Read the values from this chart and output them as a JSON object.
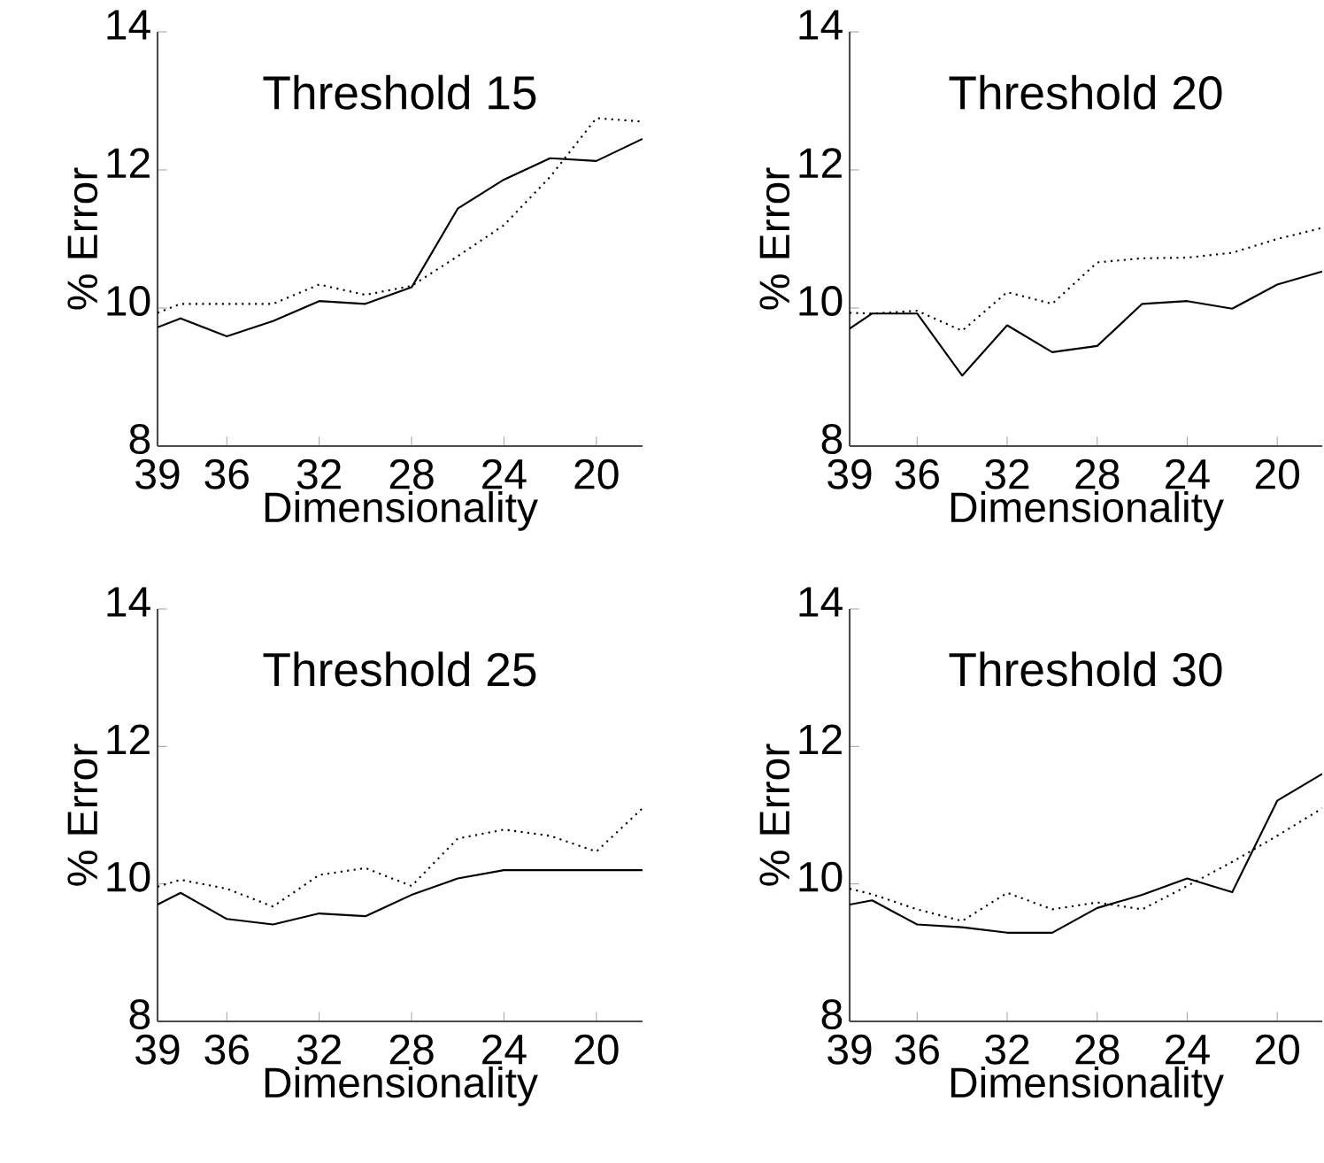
{
  "chart_data": [
    {
      "type": "line",
      "title": "Threshold 15",
      "xlabel": "Dimensionality",
      "ylabel": "% Error",
      "x": [
        39,
        38,
        36,
        34,
        32,
        30,
        28,
        26,
        24,
        22,
        20,
        18
      ],
      "xlim": [
        39,
        18
      ],
      "ylim": [
        8,
        14
      ],
      "xticks": [
        39,
        36,
        32,
        28,
        24,
        20
      ],
      "yticks": [
        8,
        10,
        12,
        14
      ],
      "series": [
        {
          "color": "#000000",
          "line_style": "solid",
          "values": [
            9.72,
            9.85,
            9.59,
            9.81,
            10.1,
            10.06,
            10.3,
            11.44,
            11.86,
            12.17,
            12.13,
            12.45
          ]
        },
        {
          "color": "#000000",
          "line_style": "dotted",
          "values": [
            9.93,
            10.06,
            10.06,
            10.06,
            10.34,
            10.19,
            10.32,
            10.75,
            11.2,
            11.9,
            12.75,
            12.7
          ]
        }
      ]
    },
    {
      "type": "line",
      "title": "Threshold 20",
      "xlabel": "Dimensionality",
      "ylabel": "% Error",
      "x": [
        39,
        38,
        36,
        34,
        32,
        30,
        28,
        26,
        24,
        22,
        20,
        18
      ],
      "xlim": [
        39,
        18
      ],
      "ylim": [
        8,
        14
      ],
      "xticks": [
        39,
        36,
        32,
        28,
        24,
        20
      ],
      "yticks": [
        8,
        10,
        12,
        14
      ],
      "series": [
        {
          "color": "#000000",
          "line_style": "solid",
          "values": [
            9.7,
            9.92,
            9.92,
            9.02,
            9.75,
            9.36,
            9.45,
            10.06,
            10.1,
            9.99,
            10.34,
            10.53
          ]
        },
        {
          "color": "#000000",
          "line_style": "dotted",
          "values": [
            9.93,
            9.92,
            9.96,
            9.67,
            10.23,
            10.06,
            10.66,
            10.72,
            10.73,
            10.8,
            11.0,
            11.16
          ]
        }
      ]
    },
    {
      "type": "line",
      "title": "Threshold 25",
      "xlabel": "Dimensionality",
      "ylabel": "% Error",
      "x": [
        39,
        38,
        36,
        34,
        32,
        30,
        28,
        26,
        24,
        22,
        20,
        18
      ],
      "xlim": [
        39,
        18
      ],
      "ylim": [
        8,
        14
      ],
      "xticks": [
        39,
        36,
        32,
        28,
        24,
        20
      ],
      "yticks": [
        8,
        10,
        12,
        14
      ],
      "series": [
        {
          "color": "#000000",
          "line_style": "solid",
          "values": [
            9.7,
            9.87,
            9.49,
            9.41,
            9.57,
            9.53,
            9.84,
            10.08,
            10.2,
            10.2,
            10.2,
            10.2
          ]
        },
        {
          "color": "#000000",
          "line_style": "dotted",
          "values": [
            9.96,
            10.06,
            9.93,
            9.67,
            10.13,
            10.23,
            9.97,
            10.66,
            10.79,
            10.7,
            10.47,
            11.1
          ]
        }
      ]
    },
    {
      "type": "line",
      "title": "Threshold 30",
      "xlabel": "Dimensionality",
      "ylabel": "% Error",
      "x": [
        39,
        38,
        36,
        34,
        32,
        30,
        28,
        26,
        24,
        22,
        20,
        18
      ],
      "xlim": [
        39,
        18
      ],
      "ylim": [
        8,
        14
      ],
      "xticks": [
        39,
        36,
        32,
        28,
        24,
        20
      ],
      "yticks": [
        8,
        10,
        12,
        14
      ],
      "series": [
        {
          "color": "#000000",
          "line_style": "solid",
          "values": [
            9.7,
            9.76,
            9.41,
            9.37,
            9.29,
            9.29,
            9.65,
            9.84,
            10.08,
            9.88,
            11.21,
            11.6
          ]
        },
        {
          "color": "#000000",
          "line_style": "dotted",
          "values": [
            9.93,
            9.85,
            9.63,
            9.46,
            9.87,
            9.63,
            9.73,
            9.63,
            9.97,
            10.32,
            10.7,
            11.1
          ]
        }
      ]
    }
  ]
}
